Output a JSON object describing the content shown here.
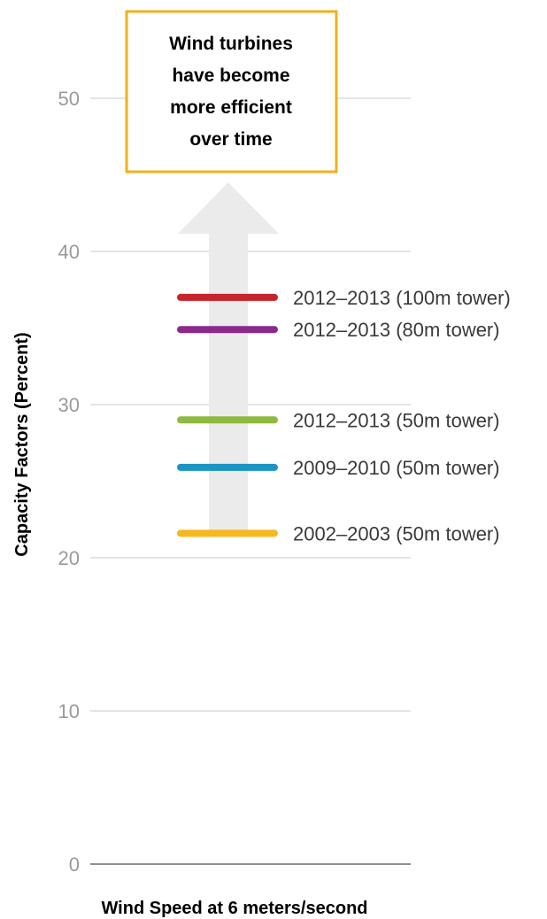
{
  "chart_data": {
    "type": "line",
    "title": "",
    "xlabel": "Wind Speed at 6 meters/second",
    "ylabel": "Capacity Factors (Percent)",
    "ylim": [
      0,
      55
    ],
    "yticks": [
      0,
      10,
      20,
      30,
      40,
      50
    ],
    "grid": true,
    "series": [
      {
        "name": "2012–2013 (100m tower)",
        "value": 37.0,
        "color": "#c8242b"
      },
      {
        "name": "2012–2013 (80m tower)",
        "value": 34.9,
        "color": "#8b2a8b"
      },
      {
        "name": "2012–2013 (50m tower)",
        "value": 29.0,
        "color": "#8dba3f"
      },
      {
        "name": "2009–2010 (50m tower)",
        "value": 25.9,
        "color": "#1b95c4"
      },
      {
        "name": "2002–2003 (50m tower)",
        "value": 21.6,
        "color": "#f7b71d"
      }
    ],
    "annotation": {
      "text_lines": [
        "Wind turbines",
        "have become",
        "more efficient",
        "over time"
      ],
      "border_color": "#f1b11b",
      "arrow_color": "#ebebeb",
      "arrow_direction": "up"
    }
  }
}
